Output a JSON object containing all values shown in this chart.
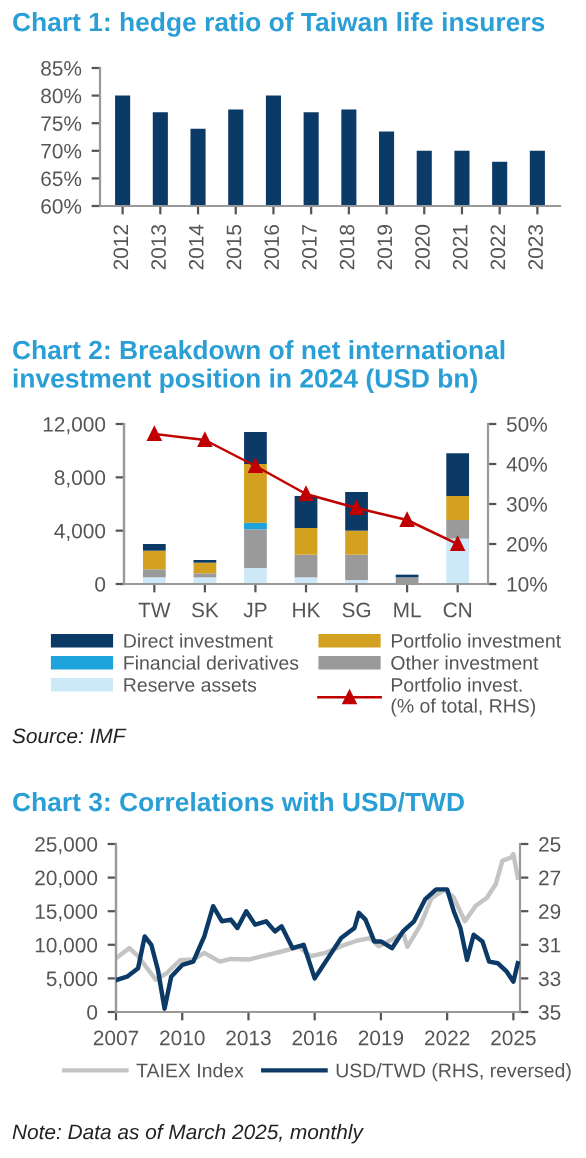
{
  "chart_data": [
    {
      "type": "bar",
      "title": "Chart 1: hedge ratio of Taiwan life insurers",
      "categories": [
        "2012",
        "2013",
        "2014",
        "2015",
        "2016",
        "2017",
        "2018",
        "2019",
        "2020",
        "2021",
        "2022",
        "2023"
      ],
      "series": [
        {
          "color": "#0b3a66",
          "values": [
            80,
            77,
            74,
            77.5,
            80,
            77,
            77.5,
            73.5,
            70,
            70,
            68,
            70
          ]
        }
      ],
      "ylim": [
        60,
        85
      ],
      "yticks": [
        {
          "value": 60,
          "label": "60%"
        },
        {
          "value": 65,
          "label": "65%"
        },
        {
          "value": 70,
          "label": "70%"
        },
        {
          "value": 75,
          "label": "75%"
        },
        {
          "value": 80,
          "label": "80%"
        },
        {
          "value": 85,
          "label": "85%"
        }
      ],
      "grid": false,
      "legend": false
    },
    {
      "type": "bar",
      "title": "Chart 2: Breakdown of net international investment position in 2024 (USD bn)",
      "categories": [
        "TW",
        "SK",
        "JP",
        "HK",
        "SG",
        "ML",
        "CN"
      ],
      "stacked": true,
      "series": [
        {
          "name": "Reserve assets",
          "color": "#cde9f7",
          "values": [
            500,
            500,
            1200,
            500,
            300,
            null,
            3400
          ]
        },
        {
          "name": "Other investment",
          "color": "#9a9a9a",
          "values": [
            600,
            300,
            2900,
            1700,
            1900,
            500,
            1400
          ]
        },
        {
          "name": "Financial derivatives",
          "color": "#1ea3dc",
          "values": [
            0,
            0,
            500,
            0,
            0,
            0,
            0
          ]
        },
        {
          "name": "Portfolio investment",
          "color": "#d4a020",
          "values": [
            1400,
            800,
            4400,
            2000,
            1800,
            0,
            1800
          ]
        },
        {
          "name": "Direct investment",
          "color": "#0b3a66",
          "values": [
            500,
            200,
            2400,
            2400,
            2900,
            200,
            3200
          ]
        },
        {
          "name": "Portfolio invest.\n(% of total, RHS)",
          "type": "line",
          "axis": "y2",
          "color": "#c00000",
          "marker": "triangle",
          "line_style": "solid",
          "values": [
            47.5,
            46,
            39.5,
            32.5,
            29,
            26,
            20
          ]
        }
      ],
      "ylim": [
        0,
        12000
      ],
      "yticks": [
        {
          "value": 0,
          "label": "0"
        },
        {
          "value": 4000,
          "label": "4,000"
        },
        {
          "value": 8000,
          "label": "8,000"
        },
        {
          "value": 12000,
          "label": "12,000"
        }
      ],
      "y2lim": [
        10,
        50
      ],
      "y2ticks": [
        {
          "value": 10,
          "label": "10%"
        },
        {
          "value": 20,
          "label": "20%"
        },
        {
          "value": 30,
          "label": "30%"
        },
        {
          "value": 40,
          "label": "40%"
        },
        {
          "value": 50,
          "label": "50%"
        }
      ],
      "grid": false,
      "legend": "bottom",
      "annotations": [
        "Source: IMF"
      ]
    },
    {
      "type": "line",
      "title": "Chart 3: Correlations with USD/TWD",
      "series": [
        {
          "name": "TAIEX Index",
          "color": "#c4c4c4",
          "x": [
            2007.0,
            2007.6,
            2008.0,
            2008.8,
            2009.3,
            2009.9,
            2010.5,
            2011.0,
            2011.7,
            2012.2,
            2013.0,
            2013.5,
            2014.5,
            2015.3,
            2015.8,
            2016.5,
            2017.2,
            2017.9,
            2018.5,
            2018.9,
            2019.5,
            2020.0,
            2020.2,
            2020.8,
            2021.3,
            2021.9,
            2022.3,
            2022.8,
            2023.3,
            2023.8,
            2024.2,
            2024.5,
            2024.9,
            2025.0,
            2025.2
          ],
          "values": [
            8000,
            9500,
            8300,
            4800,
            5800,
            7700,
            7800,
            8800,
            7500,
            7900,
            7800,
            8200,
            9000,
            9700,
            8300,
            8800,
            9800,
            10600,
            11000,
            9800,
            10800,
            11800,
            9700,
            13000,
            17000,
            18200,
            17000,
            13500,
            15800,
            17000,
            19000,
            22500,
            23000,
            23500,
            20000
          ]
        },
        {
          "name": "USD/TWD (RHS, reversed)",
          "axis": "y2",
          "color": "#0b3a66",
          "x": [
            2007.0,
            2007.5,
            2008.0,
            2008.3,
            2008.6,
            2008.9,
            2009.2,
            2009.5,
            2010.0,
            2010.5,
            2011.0,
            2011.4,
            2011.8,
            2012.2,
            2012.5,
            2012.9,
            2013.3,
            2013.8,
            2014.2,
            2014.5,
            2015.0,
            2015.5,
            2016.0,
            2016.3,
            2016.7,
            2017.2,
            2017.8,
            2018.0,
            2018.3,
            2018.7,
            2019.0,
            2019.5,
            2020.0,
            2020.5,
            2021.0,
            2021.5,
            2022.0,
            2022.3,
            2022.6,
            2022.9,
            2023.2,
            2023.6,
            2023.9,
            2024.3,
            2024.7,
            2025.0,
            2025.2
          ],
          "values": [
            33.1,
            32.9,
            32.4,
            30.5,
            31.0,
            32.5,
            34.8,
            32.9,
            32.2,
            32.0,
            30.5,
            28.7,
            29.6,
            29.5,
            30.0,
            29.0,
            29.8,
            29.6,
            30.2,
            29.9,
            31.2,
            31.0,
            33.0,
            32.4,
            31.6,
            30.6,
            30.0,
            29.1,
            29.5,
            30.8,
            30.8,
            31.2,
            30.2,
            29.6,
            28.3,
            27.7,
            27.7,
            29.0,
            30.0,
            31.9,
            30.4,
            30.8,
            32.0,
            32.1,
            32.6,
            33.2,
            32.1
          ]
        }
      ],
      "xlim": [
        2007,
        2025.3
      ],
      "xticks": [
        2007,
        2010,
        2013,
        2016,
        2019,
        2022,
        2025
      ],
      "ylim": [
        0,
        25000
      ],
      "yticks": [
        {
          "value": 0,
          "label": "0"
        },
        {
          "value": 5000,
          "label": "5,000"
        },
        {
          "value": 10000,
          "label": "10,000"
        },
        {
          "value": 15000,
          "label": "15,000"
        },
        {
          "value": 20000,
          "label": "20,000"
        },
        {
          "value": 25000,
          "label": "25,000"
        }
      ],
      "y2lim": [
        35,
        25
      ],
      "y2ticks": [
        25,
        27,
        29,
        31,
        33,
        35
      ],
      "grid": false,
      "legend": "bottom",
      "annotations": [
        "Note: Data as of March 2025, monthly"
      ]
    }
  ]
}
